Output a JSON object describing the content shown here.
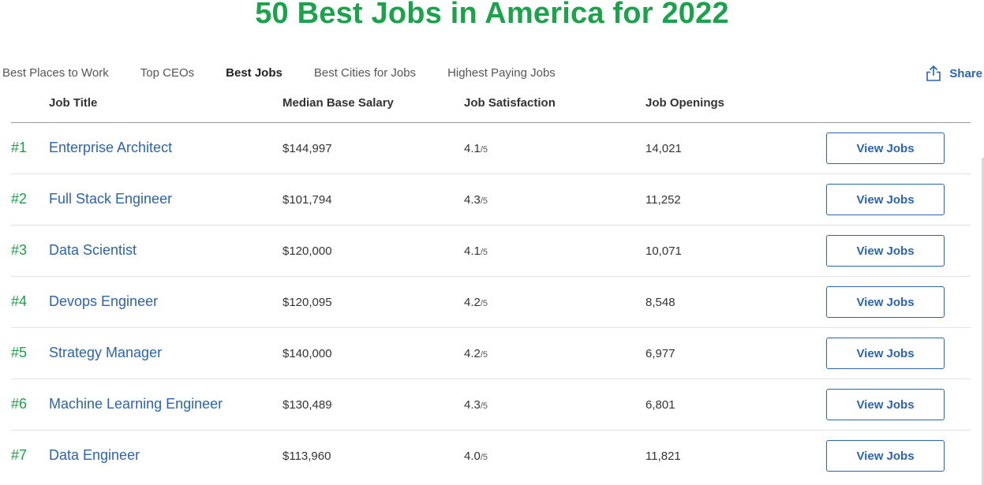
{
  "page": {
    "title": "50 Best Jobs in America for 2022"
  },
  "tabs": [
    {
      "label": "Best Places to Work",
      "active": false
    },
    {
      "label": "Top CEOs",
      "active": false
    },
    {
      "label": "Best Jobs",
      "active": true
    },
    {
      "label": "Best Cities for Jobs",
      "active": false
    },
    {
      "label": "Highest Paying Jobs",
      "active": false
    }
  ],
  "share": {
    "label": "Share",
    "icon": "share-icon"
  },
  "table": {
    "headers": {
      "job_title": "Job Title",
      "salary": "Median Base Salary",
      "satisfaction": "Job Satisfaction",
      "openings": "Job Openings"
    },
    "rating_max": "/5",
    "button_label": "View Jobs",
    "rows": [
      {
        "rank": "#1",
        "title": "Enterprise Architect",
        "salary": "$144,997",
        "satisfaction": "4.1",
        "openings": "14,021"
      },
      {
        "rank": "#2",
        "title": "Full Stack Engineer",
        "salary": "$101,794",
        "satisfaction": "4.3",
        "openings": "11,252"
      },
      {
        "rank": "#3",
        "title": "Data Scientist",
        "salary": "$120,000",
        "satisfaction": "4.1",
        "openings": "10,071"
      },
      {
        "rank": "#4",
        "title": "Devops Engineer",
        "salary": "$120,095",
        "satisfaction": "4.2",
        "openings": "8,548"
      },
      {
        "rank": "#5",
        "title": "Strategy Manager",
        "salary": "$140,000",
        "satisfaction": "4.2",
        "openings": "6,977"
      },
      {
        "rank": "#6",
        "title": "Machine Learning Engineer",
        "salary": "$130,489",
        "satisfaction": "4.3",
        "openings": "6,801"
      },
      {
        "rank": "#7",
        "title": "Data Engineer",
        "salary": "$113,960",
        "satisfaction": "4.0",
        "openings": "11,821"
      }
    ]
  },
  "colors": {
    "brand_green": "#1aa34a",
    "link_blue": "#2b63b5"
  }
}
